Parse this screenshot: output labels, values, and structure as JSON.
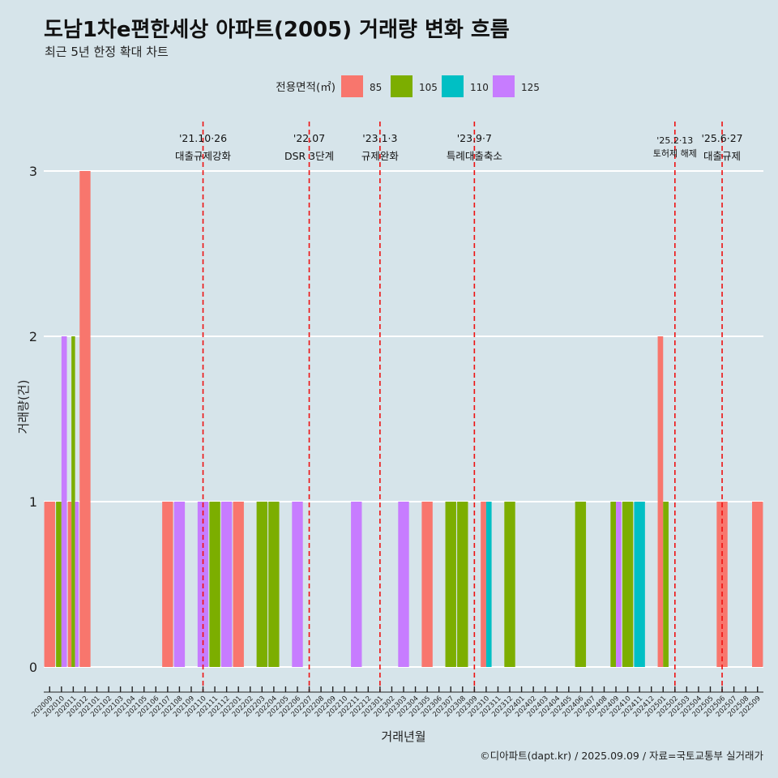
{
  "title": "도남1차e편한세상 아파트(2005) 거래량 변화 흐름",
  "subtitle": "최근 5년 한정 확대 차트",
  "caption": "©디아파트(dapt.kr) / 2025.09.09 / 자료=국토교통부 실거래가",
  "colors": {
    "background": "#d6e4ea",
    "grid": "#ffffff",
    "event_line": "#ee1111",
    "series": [
      "#f8766d",
      "#7cae00",
      "#00bfc4",
      "#c77cff"
    ]
  },
  "chart_data": {
    "type": "bar",
    "xlabel": "거래년월",
    "ylabel": "거래량(건)",
    "ylim": [
      0,
      3
    ],
    "yticks": [
      0,
      1,
      2,
      3
    ],
    "grid": true,
    "legend": {
      "title": "전용면적(㎡)",
      "position": "top"
    },
    "categories": [
      "202009",
      "202010",
      "202011",
      "202012",
      "202101",
      "202102",
      "202103",
      "202104",
      "202105",
      "202106",
      "202107",
      "202108",
      "202109",
      "202110",
      "202111",
      "202112",
      "202201",
      "202202",
      "202203",
      "202204",
      "202205",
      "202206",
      "202207",
      "202208",
      "202209",
      "202210",
      "202211",
      "202212",
      "202301",
      "202302",
      "202303",
      "202304",
      "202305",
      "202306",
      "202307",
      "202308",
      "202309",
      "202310",
      "202311",
      "202312",
      "202401",
      "202402",
      "202403",
      "202404",
      "202405",
      "202406",
      "202407",
      "202408",
      "202409",
      "202410",
      "202411",
      "202412",
      "202501",
      "202502",
      "202503",
      "202504",
      "202505",
      "202506",
      "202507",
      "202508",
      "202509"
    ],
    "series": [
      {
        "name": "85",
        "values": [
          1,
          0,
          1,
          3,
          0,
          0,
          0,
          0,
          0,
          0,
          1,
          0,
          0,
          0,
          0,
          0,
          1,
          0,
          0,
          0,
          0,
          0,
          0,
          0,
          0,
          0,
          0,
          0,
          0,
          0,
          0,
          0,
          1,
          0,
          0,
          0,
          0,
          1,
          0,
          0,
          0,
          0,
          0,
          0,
          0,
          0,
          0,
          0,
          0,
          0,
          0,
          0,
          2,
          0,
          0,
          0,
          0,
          1,
          0,
          0,
          1
        ]
      },
      {
        "name": "105",
        "values": [
          0,
          1,
          2,
          0,
          0,
          0,
          0,
          0,
          0,
          0,
          0,
          0,
          0,
          0,
          1,
          0,
          0,
          0,
          1,
          1,
          0,
          0,
          0,
          0,
          0,
          0,
          0,
          0,
          0,
          0,
          0,
          0,
          0,
          0,
          1,
          1,
          0,
          0,
          0,
          1,
          0,
          0,
          0,
          0,
          0,
          1,
          0,
          0,
          1,
          1,
          0,
          0,
          1,
          0,
          0,
          0,
          0,
          0,
          0,
          0,
          0
        ]
      },
      {
        "name": "110",
        "values": [
          0,
          0,
          0,
          0,
          0,
          0,
          0,
          0,
          0,
          0,
          0,
          0,
          0,
          0,
          0,
          0,
          0,
          0,
          0,
          0,
          0,
          0,
          0,
          0,
          0,
          0,
          0,
          0,
          0,
          0,
          0,
          0,
          0,
          0,
          0,
          0,
          0,
          1,
          0,
          0,
          0,
          0,
          0,
          0,
          0,
          0,
          0,
          0,
          0,
          0,
          1,
          0,
          0,
          0,
          0,
          0,
          0,
          0,
          0,
          0,
          0
        ]
      },
      {
        "name": "125",
        "values": [
          0,
          2,
          1,
          0,
          0,
          0,
          0,
          0,
          0,
          0,
          0,
          1,
          0,
          1,
          0,
          1,
          0,
          0,
          0,
          0,
          0,
          1,
          0,
          0,
          0,
          0,
          1,
          0,
          0,
          0,
          1,
          0,
          0,
          0,
          0,
          0,
          0,
          0,
          0,
          0,
          0,
          0,
          0,
          0,
          0,
          0,
          0,
          0,
          1,
          0,
          0,
          0,
          0,
          0,
          0,
          0,
          0,
          0,
          0,
          0,
          0
        ]
      }
    ],
    "annotations": [
      {
        "x": "202110",
        "date": "'21.10·26",
        "label": "대출규제강화"
      },
      {
        "x": "202207",
        "date": "'22.07",
        "label": "DSR 3단계"
      },
      {
        "x": "202301",
        "date": "'23.1·3",
        "label": "규제완화"
      },
      {
        "x": "202309",
        "date": "'23.9·7",
        "label": "특례대출축소"
      },
      {
        "x": "202502",
        "date": "'25.2·13",
        "label": "토허제 해제"
      },
      {
        "x": "202506",
        "date": "'25.6·27",
        "label": "대출규제"
      }
    ]
  }
}
